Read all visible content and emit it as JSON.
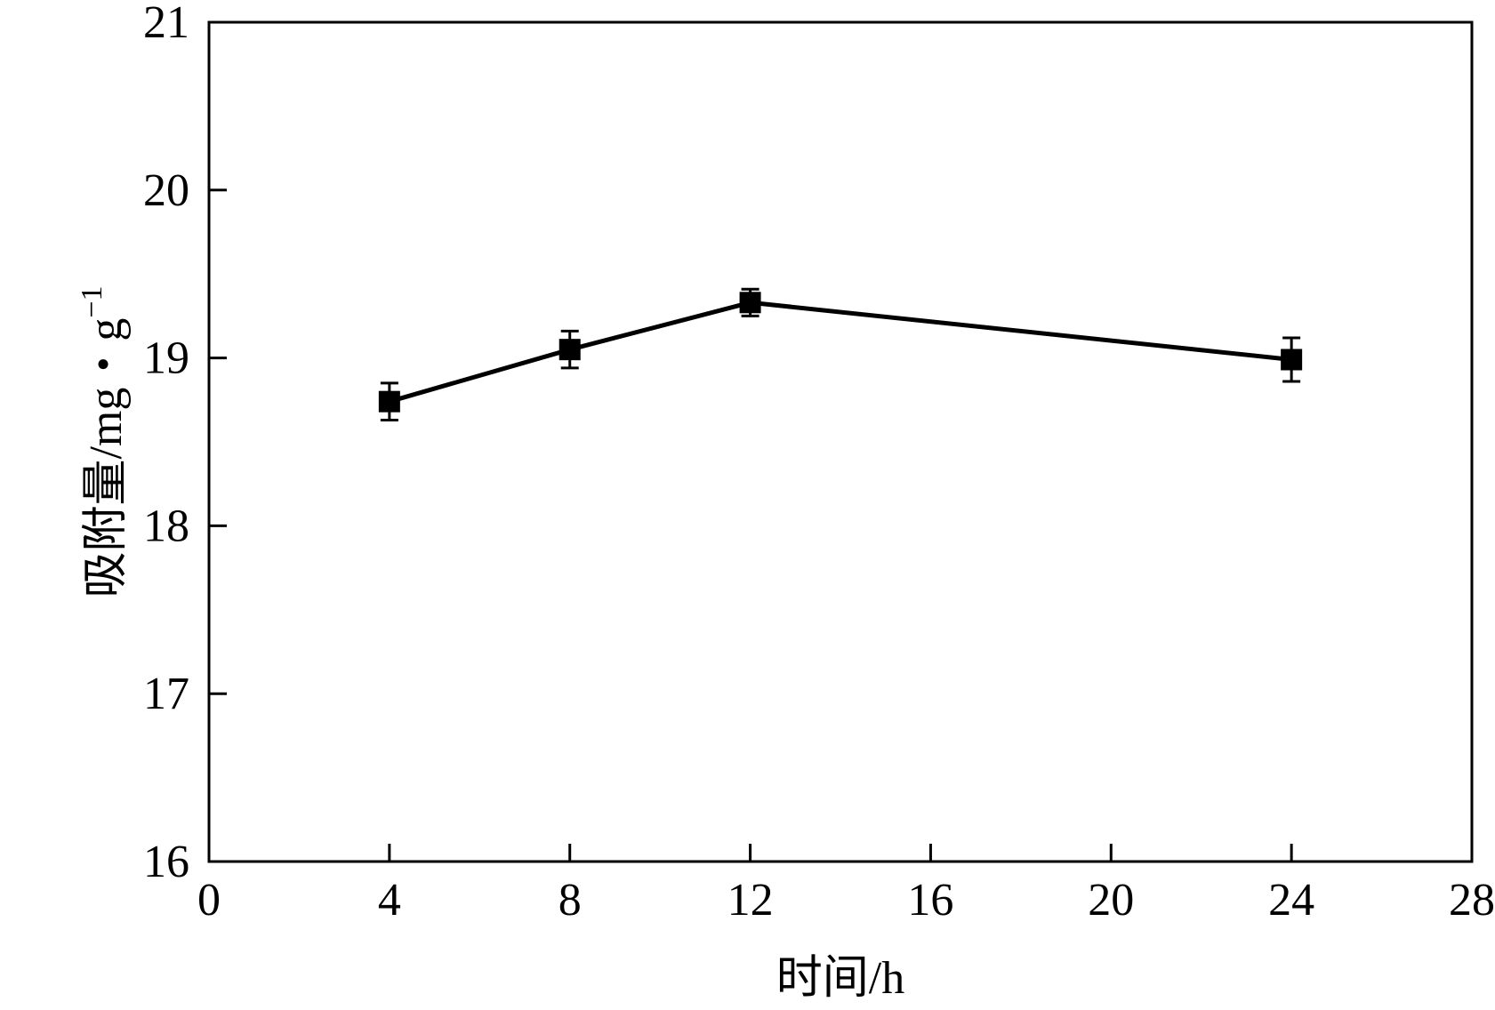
{
  "chart_data": {
    "type": "line",
    "xlabel": "时间/h",
    "ylabel": "吸附量/mg・g",
    "ylabel_superscript": "−1",
    "xlim": [
      0,
      28
    ],
    "ylim": [
      16,
      21
    ],
    "xticks": [
      "0",
      "4",
      "8",
      "12",
      "16",
      "20",
      "24",
      "28"
    ],
    "yticks": [
      "16",
      "17",
      "18",
      "19",
      "20",
      "21"
    ],
    "grid": false,
    "series": [
      {
        "points": [
          {
            "x": 4,
            "y": 18.74,
            "err": 0.11
          },
          {
            "x": 8,
            "y": 19.05,
            "err": 0.11
          },
          {
            "x": 12,
            "y": 19.33,
            "err": 0.08
          },
          {
            "x": 24,
            "y": 18.99,
            "err": 0.13
          }
        ],
        "color": "#000000",
        "marker": "square"
      }
    ]
  }
}
